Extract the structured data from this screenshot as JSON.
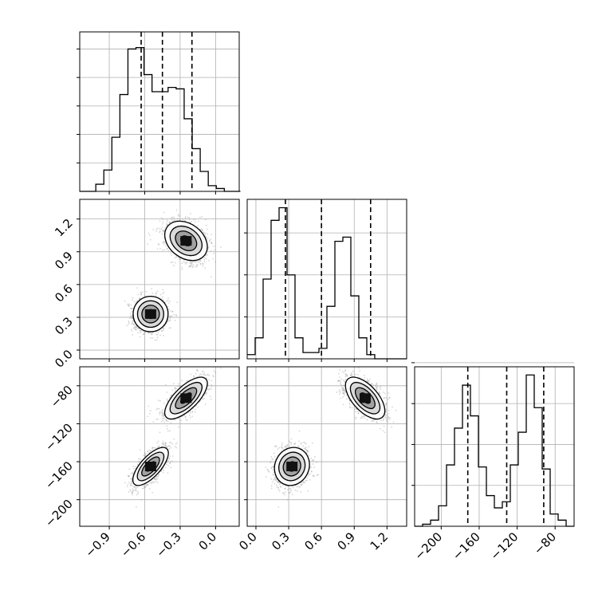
{
  "chart_data": {
    "type": "corner",
    "title": "",
    "parameters": [
      {
        "xlim": [
          -1.15,
          0.2
        ],
        "quantiles": [
          -0.63,
          -0.45,
          -0.2
        ]
      },
      {
        "xlim": [
          -0.08,
          1.38
        ],
        "quantiles": [
          0.27,
          0.6,
          1.05
        ]
      },
      {
        "xlim": [
          -228,
          -60
        ],
        "quantiles": [
          -172,
          -131,
          -92
        ]
      }
    ],
    "tick_labels": {
      "p0": [
        "−0.9",
        "−0.6",
        "−0.3",
        "0.0"
      ],
      "p1": [
        "0.0",
        "0.3",
        "0.6",
        "0.9",
        "1.2"
      ],
      "p2": [
        "−200",
        "−160",
        "−120",
        "−80"
      ]
    },
    "tick_values": {
      "p0": [
        -0.9,
        -0.6,
        -0.3,
        0.0
      ],
      "p1": [
        0.0,
        0.3,
        0.6,
        0.9,
        1.2
      ],
      "p2": [
        -200,
        -160,
        -120,
        -80
      ]
    },
    "histograms": [
      {
        "param": 0,
        "edges_start": -1.15,
        "bin_width": 0.068,
        "counts": [
          0,
          0,
          0.05,
          0.15,
          0.38,
          0.68,
          1.0,
          1.01,
          0.82,
          0.7,
          0.7,
          0.73,
          0.72,
          0.51,
          0.3,
          0.14,
          0.04,
          0.02,
          0,
          0
        ]
      },
      {
        "param": 1,
        "edges_start": -0.08,
        "bin_width": 0.073,
        "counts": [
          0.02,
          0.1,
          0.38,
          0.66,
          0.72,
          0.4,
          0.1,
          0.03,
          0.03,
          0.05,
          0.25,
          0.56,
          0.58,
          0.3,
          0.1,
          0.02,
          0,
          0,
          0,
          0
        ]
      },
      {
        "param": 2,
        "edges_start": -228,
        "bin_width": 8.4,
        "counts": [
          0,
          0.01,
          0.03,
          0.1,
          0.3,
          0.48,
          0.69,
          0.54,
          0.29,
          0.15,
          0.09,
          0.12,
          0.3,
          0.46,
          0.74,
          0.58,
          0.28,
          0.06,
          0.03,
          0
        ]
      }
    ],
    "histogram_ymax": [
      1.12,
      0.76,
      0.78
    ],
    "hist_y_ticks": [
      [
        0.2,
        0.4,
        0.6,
        0.8,
        1.0
      ],
      [
        0.2,
        0.4,
        0.6
      ],
      [
        0.2,
        0.4,
        0.6,
        0.8
      ]
    ],
    "modes": [
      {
        "mean": [
          -0.55,
          0.33,
          -165
        ],
        "sd": [
          0.075,
          0.08,
          10
        ],
        "rho01": 0.0,
        "rho02": 0.7,
        "rho12": 0.1
      },
      {
        "mean": [
          -0.25,
          1.0,
          -93
        ],
        "sd": [
          0.09,
          0.09,
          11
        ],
        "rho01": -0.3,
        "rho02": 0.7,
        "rho12": -0.6
      }
    ],
    "grid": true,
    "line_color": "#000000",
    "point_color": "#8a8a8a"
  }
}
